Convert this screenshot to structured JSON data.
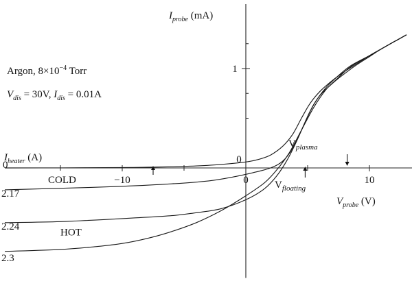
{
  "chart_data": {
    "type": "line",
    "title": "",
    "annotation": {
      "gas": "Argon, 8×10",
      "pressure_exp": "−4",
      "pressure_unit": " Torr",
      "vdis_sym": "V",
      "vdis_sub": "dis",
      "vdis_val": " = 30V, ",
      "idis_sym": "I",
      "idis_sub": "dis",
      "idis_val": " = 0.01A"
    },
    "ylabel": {
      "sym": "I",
      "sub": "probe",
      "unit": " (mA)"
    },
    "xlabel": {
      "sym": "V",
      "sub": "probe",
      "unit": " (V)"
    },
    "heater_label": {
      "sym": "I",
      "sub": "heater",
      "unit": " (A)"
    },
    "x_ticks": [
      -10,
      0,
      10
    ],
    "y_ticks": [
      1
    ],
    "y_zero_label": "0",
    "xlim": [
      -19.5,
      13.5
    ],
    "ylim": [
      -0.9,
      1.35
    ],
    "markers": {
      "v_plasma": {
        "letter": "V",
        "sub": "plasma",
        "x": 8.2
      },
      "v_floating": {
        "letter": "V",
        "sub": "floating",
        "x": 4.8
      }
    },
    "extra_arrows_x": [
      -7.5
    ],
    "series": [
      {
        "name": "0",
        "extra_label": "COLD",
        "x": [
          -19.5,
          -15,
          -10,
          -8,
          -6,
          -4,
          -2,
          0,
          1,
          2,
          3,
          3.8,
          4.5,
          5.2,
          6,
          7,
          8,
          9,
          10,
          11,
          12,
          13
        ],
        "y": [
          0,
          0.001,
          0.004,
          0.007,
          0.012,
          0.02,
          0.035,
          0.06,
          0.085,
          0.13,
          0.22,
          0.34,
          0.5,
          0.65,
          0.77,
          0.88,
          0.97,
          1.05,
          1.13,
          1.2,
          1.27,
          1.34
        ]
      },
      {
        "name": "2.17",
        "x": [
          -19.5,
          -15,
          -10,
          -6,
          -3,
          -1,
          0.5,
          2,
          3,
          3.8,
          4.5,
          5.2,
          6,
          7,
          8,
          9,
          10,
          11,
          12,
          13
        ],
        "y": [
          -0.22,
          -0.205,
          -0.185,
          -0.16,
          -0.13,
          -0.09,
          -0.05,
          0,
          0.07,
          0.2,
          0.38,
          0.57,
          0.73,
          0.85,
          0.95,
          1.04,
          1.12,
          1.2,
          1.27,
          1.34
        ]
      },
      {
        "name": "2.24",
        "x": [
          -19.5,
          -15,
          -10,
          -6,
          -4,
          -2,
          0,
          1.5,
          2.5,
          3.3,
          4,
          4.8,
          5.5,
          6.5,
          7.5,
          8.5,
          10,
          11,
          12,
          13
        ],
        "y": [
          -0.55,
          -0.54,
          -0.51,
          -0.48,
          -0.45,
          -0.41,
          -0.32,
          -0.21,
          -0.08,
          0.07,
          0.24,
          0.46,
          0.64,
          0.81,
          0.93,
          1.03,
          1.13,
          1.2,
          1.27,
          1.34
        ]
      },
      {
        "name": "2.3",
        "extra_label": "HOT",
        "x": [
          -19.5,
          -15,
          -12,
          -10,
          -8,
          -6,
          -4,
          -2,
          0,
          1.5,
          2.5,
          3.5,
          4.5,
          5.5,
          6.5,
          7.5,
          8.5,
          10,
          11,
          12,
          13
        ],
        "y": [
          -0.84,
          -0.82,
          -0.79,
          -0.76,
          -0.71,
          -0.64,
          -0.55,
          -0.43,
          -0.28,
          -0.15,
          -0.02,
          0.15,
          0.38,
          0.61,
          0.79,
          0.91,
          1.02,
          1.13,
          1.2,
          1.27,
          1.34
        ]
      }
    ],
    "grid": false,
    "legend": "none"
  }
}
